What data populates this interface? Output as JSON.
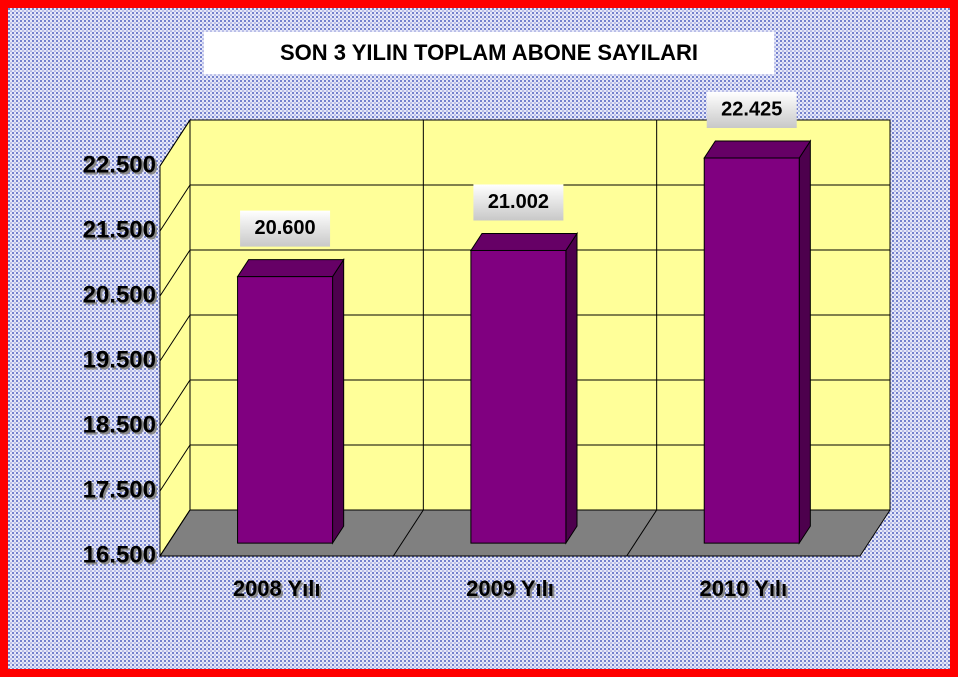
{
  "chart_data": {
    "type": "bar3d",
    "title": "SON 3 YILIN TOPLAM ABONE SAYILARI",
    "categories": [
      "2008 Yılı",
      "2009 Yılı",
      "2010 Yılı"
    ],
    "values": [
      20600,
      21002,
      22425
    ],
    "value_labels": [
      "20.600",
      "21.002",
      "22.425"
    ],
    "color": "#800080",
    "ylim": [
      16500,
      22500
    ],
    "yticks": [
      {
        "value": 16500,
        "label": "16.500"
      },
      {
        "value": 17500,
        "label": "17.500"
      },
      {
        "value": 18500,
        "label": "18.500"
      },
      {
        "value": 19500,
        "label": "19.500"
      },
      {
        "value": 20500,
        "label": "20.500"
      },
      {
        "value": 21500,
        "label": "21.500"
      },
      {
        "value": 22500,
        "label": "22.500"
      }
    ],
    "grid": true
  }
}
